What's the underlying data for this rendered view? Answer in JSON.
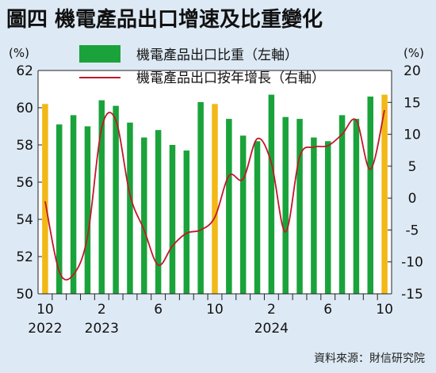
{
  "title": "圖四  機電產品出口增速及比重變化",
  "source": "資料來源：財信研究院",
  "colors": {
    "background": "#dde9f4",
    "plot_background": "#ffffff",
    "bar_green": "#1aa33a",
    "bar_highlight": "#f2b816",
    "line_red": "#c0182a",
    "text": "#111111"
  },
  "chart_data": {
    "type": "bar+line",
    "left_axis": {
      "unit_label": "(%)",
      "range": [
        50,
        62
      ],
      "ticks": [
        "50",
        "52",
        "54",
        "56",
        "58",
        "60",
        "62"
      ]
    },
    "right_axis": {
      "unit_label": "(%)",
      "range": [
        -15,
        20
      ],
      "ticks": [
        "-15",
        "-10",
        "-5",
        "0",
        "5",
        "10",
        "15",
        "20"
      ]
    },
    "x_tick_labels": [
      {
        "index": 0,
        "month": "10",
        "year": "2022"
      },
      {
        "index": 4,
        "month": "2",
        "year": "2023"
      },
      {
        "index": 8,
        "month": "6",
        "year": ""
      },
      {
        "index": 12,
        "month": "10",
        "year": ""
      },
      {
        "index": 16,
        "month": "2",
        "year": "2024"
      },
      {
        "index": 20,
        "month": "6",
        "year": ""
      },
      {
        "index": 24,
        "month": "10",
        "year": ""
      }
    ],
    "legend": [
      {
        "name": "機電產品出口比重（左軸）",
        "kind": "bar"
      },
      {
        "name": "機電產品出口按年增長（右軸）",
        "kind": "line"
      }
    ],
    "series": [
      {
        "name": "機電產品出口比重（左軸）",
        "axis": "left",
        "type": "bar",
        "values": [
          60.2,
          59.1,
          59.6,
          59.0,
          60.4,
          60.1,
          59.2,
          58.4,
          58.8,
          58.0,
          57.7,
          60.3,
          60.2,
          59.4,
          58.5,
          58.2,
          60.7,
          59.5,
          59.4,
          58.4,
          58.2,
          59.6,
          59.4,
          60.6,
          60.7
        ],
        "highlighted_indices": [
          0,
          12,
          24
        ]
      },
      {
        "name": "機電產品出口按年增長（右軸）",
        "axis": "right",
        "type": "line",
        "values": [
          -0.5,
          -11.5,
          -12.0,
          -6.0,
          11.0,
          12.2,
          0.5,
          -5.0,
          -10.5,
          -7.5,
          -5.5,
          -5.0,
          -3.0,
          3.5,
          3.0,
          9.3,
          5.5,
          -5.3,
          6.5,
          8.0,
          8.2,
          10.0,
          12.2,
          4.5,
          13.8
        ]
      }
    ],
    "grid": false,
    "legend_position": "top-center"
  }
}
